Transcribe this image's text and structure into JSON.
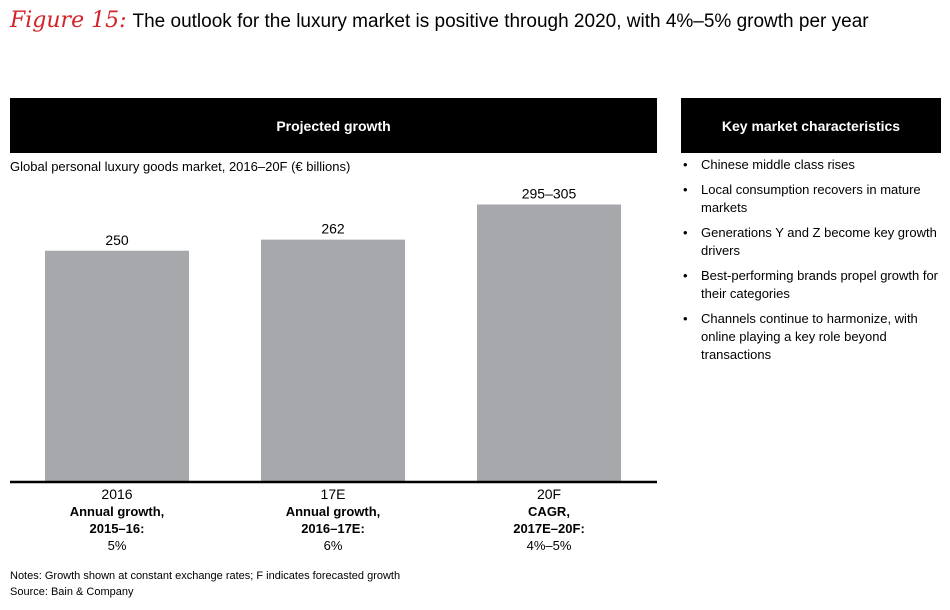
{
  "figure": {
    "label": "Figure 15:",
    "title": "The outlook for the luxury market is positive through 2020, with 4%–5% growth per year"
  },
  "left_panel": {
    "header": "Projected growth",
    "subtitle": "Global personal luxury goods market, 2016–20F (€ billions)"
  },
  "chart_data": {
    "type": "bar",
    "categories": [
      "2016",
      "17E",
      "20F"
    ],
    "values": [
      250,
      262,
      300
    ],
    "value_ranges": [
      null,
      null,
      [
        295,
        305
      ]
    ],
    "data_labels": [
      "250",
      "262",
      "295–305"
    ],
    "ylim": [
      0,
      320
    ],
    "bar_color": "#a6a8ab",
    "growth": [
      {
        "label_line1": "Annual growth,",
        "label_line2": "2015–16:",
        "value": "5%"
      },
      {
        "label_line1": "Annual growth,",
        "label_line2": "2016–17E:",
        "value": "6%"
      },
      {
        "label_line1": "CAGR,",
        "label_line2": "2017E–20F:",
        "value": "4%–5%"
      }
    ]
  },
  "right_panel": {
    "header": "Key market characteristics",
    "bullet": "•",
    "items": [
      "Chinese middle class rises",
      "Local consumption recovers in mature markets",
      "Generations Y and Z become key growth drivers",
      "Best-performing brands propel growth for their categories",
      "Channels continue to harmonize, with online playing a key role beyond transactions"
    ]
  },
  "notes": {
    "notes_line": "Notes: Growth shown at constant exchange rates; F indicates forecasted growth",
    "source_line": "Source: Bain & Company"
  },
  "colors": {
    "accent": "#d2232a",
    "header_bg": "#000000",
    "bar": "#a6a8ab"
  }
}
